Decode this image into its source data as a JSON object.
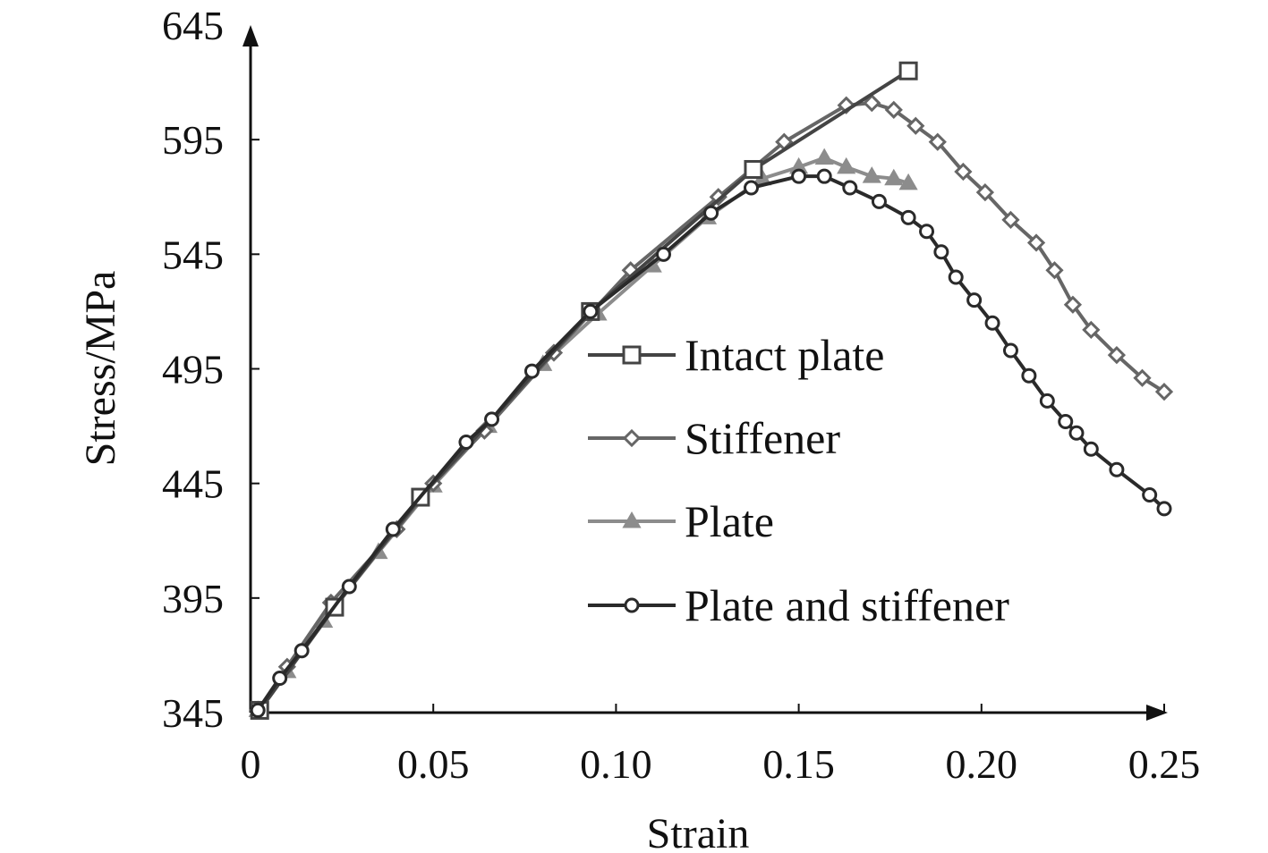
{
  "chart_data": {
    "type": "line",
    "title": "",
    "xlabel": "Strain",
    "ylabel": "Stress/MPa",
    "xlim": [
      0,
      0.25
    ],
    "ylim": [
      345,
      645
    ],
    "xticks": [
      0,
      0.05,
      0.1,
      0.15,
      0.2,
      0.25
    ],
    "xtick_labels": [
      "0",
      "0.05",
      "0.10",
      "0.15",
      "0.20",
      "0.25"
    ],
    "yticks": [
      345,
      395,
      445,
      495,
      545,
      595,
      645
    ],
    "ytick_labels": [
      "345",
      "395",
      "445",
      "495",
      "545",
      "595",
      "645"
    ],
    "grid": false,
    "legend_position": "center-right",
    "series": [
      {
        "name": "Intact plate",
        "marker": "square",
        "color": "#444444",
        "x": [
          0.0025,
          0.023,
          0.0465,
          0.093,
          0.1376,
          0.18
        ],
        "y": [
          346,
          391,
          439,
          520,
          582,
          625
        ]
      },
      {
        "name": "Stiffener",
        "marker": "diamond",
        "color": "#666666",
        "x": [
          0.002,
          0.01,
          0.022,
          0.04,
          0.05,
          0.064,
          0.083,
          0.104,
          0.128,
          0.146,
          0.163,
          0.17,
          0.176,
          0.182,
          0.188,
          0.195,
          0.201,
          0.208,
          0.215,
          0.22,
          0.225,
          0.23,
          0.237,
          0.244,
          0.25
        ],
        "y": [
          346,
          365,
          393,
          425,
          445,
          468,
          502,
          538,
          570,
          594,
          610,
          611,
          608,
          601,
          594,
          581,
          572,
          560,
          550,
          538,
          523,
          512,
          501,
          491,
          485
        ]
      },
      {
        "name": "Plate",
        "marker": "triangle",
        "color": "#8c8c8c",
        "x": [
          0.002,
          0.01,
          0.02,
          0.035,
          0.05,
          0.065,
          0.08,
          0.095,
          0.11,
          0.125,
          0.14,
          0.15,
          0.157,
          0.163,
          0.17,
          0.176,
          0.18
        ],
        "y": [
          346,
          363,
          385,
          415,
          444,
          470,
          497,
          519,
          540,
          561,
          578,
          583,
          587,
          583,
          579,
          578,
          576
        ]
      },
      {
        "name": "Plate and stiffener",
        "marker": "circle",
        "color": "#2a2a2a",
        "x": [
          0.002,
          0.008,
          0.014,
          0.027,
          0.039,
          0.059,
          0.066,
          0.077,
          0.093,
          0.113,
          0.126,
          0.137,
          0.15,
          0.157,
          0.164,
          0.172,
          0.18,
          0.185,
          0.189,
          0.193,
          0.198,
          0.203,
          0.208,
          0.213,
          0.218,
          0.223,
          0.226,
          0.23,
          0.237,
          0.246,
          0.25
        ],
        "y": [
          346,
          360,
          372,
          400,
          425,
          463,
          473,
          494,
          520,
          545,
          563,
          574,
          579,
          579,
          574,
          568,
          561,
          555,
          546,
          535,
          525,
          515,
          503,
          492,
          481,
          472,
          467,
          460,
          451,
          440,
          434
        ]
      }
    ]
  }
}
